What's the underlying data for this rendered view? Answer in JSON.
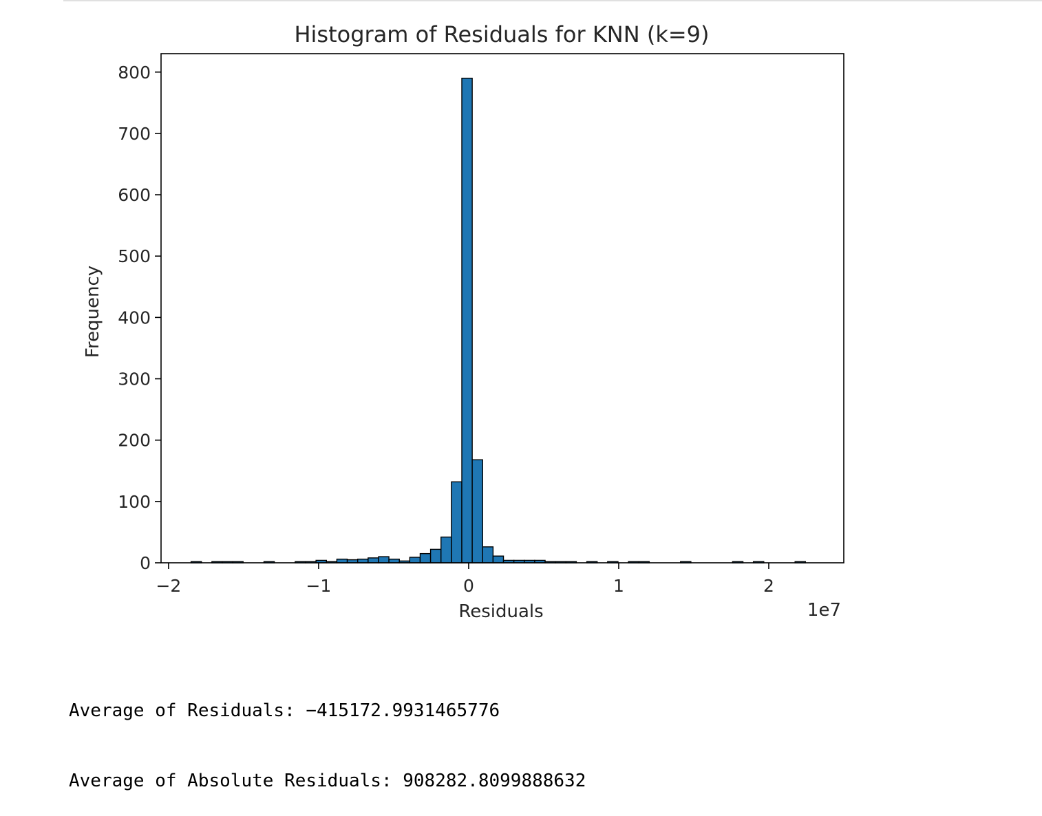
{
  "chart_data": {
    "type": "bar",
    "title": "Histogram of Residuals for KNN (k=9)",
    "xlabel": "Residuals",
    "ylabel": "Frequency",
    "x_offset_label": "1e7",
    "xlim": [
      -2.05,
      2.5
    ],
    "ylim": [
      0,
      830
    ],
    "xticks": [
      {
        "value": -2,
        "label": "−2"
      },
      {
        "value": -1,
        "label": "−1"
      },
      {
        "value": 0,
        "label": "0"
      },
      {
        "value": 1,
        "label": "1"
      },
      {
        "value": 2,
        "label": "2"
      }
    ],
    "yticks": [
      {
        "value": 0,
        "label": "0"
      },
      {
        "value": 100,
        "label": "100"
      },
      {
        "value": 200,
        "label": "200"
      },
      {
        "value": 300,
        "label": "300"
      },
      {
        "value": 400,
        "label": "400"
      },
      {
        "value": 500,
        "label": "500"
      },
      {
        "value": 600,
        "label": "600"
      },
      {
        "value": 700,
        "label": "700"
      },
      {
        "value": 800,
        "label": "800"
      }
    ],
    "bin_start": -1.85,
    "bin_width": 0.0694,
    "values": [
      2,
      0,
      2,
      2,
      2,
      0,
      0,
      2,
      0,
      0,
      2,
      2,
      4,
      2,
      6,
      5,
      6,
      8,
      10,
      6,
      3,
      9,
      15,
      22,
      42,
      132,
      790,
      168,
      26,
      11,
      4,
      4,
      4,
      4,
      2,
      2,
      2,
      0,
      2,
      0,
      2,
      0,
      2,
      2,
      0,
      0,
      0,
      2,
      0,
      0,
      0,
      0,
      2,
      0,
      2,
      0,
      0,
      0,
      2
    ],
    "bar_color": "#1f77b4",
    "edge_color": "#000000",
    "grid": false
  },
  "output": {
    "line1": "Average of Residuals: −415172.9931465776",
    "line2": "Average of Absolute Residuals: 908282.8099888632"
  }
}
